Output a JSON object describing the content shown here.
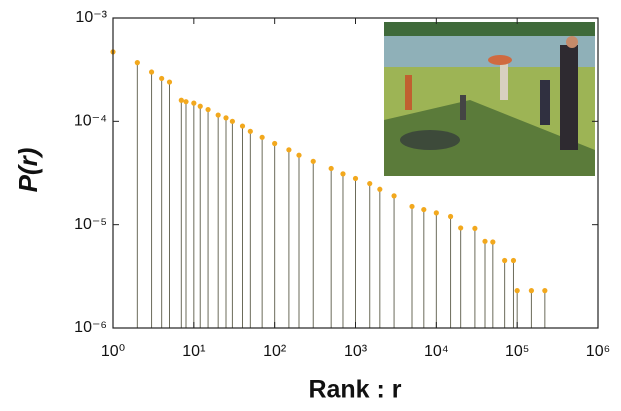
{
  "chart_data": {
    "type": "scatter",
    "xlabel": "Rank : r",
    "ylabel": "P(r)",
    "log_x": true,
    "log_y": true,
    "stems": true,
    "x": [
      1,
      2,
      3,
      4,
      5,
      7,
      8,
      10,
      12,
      15,
      20,
      25,
      30,
      40,
      50,
      70,
      100,
      150,
      200,
      300,
      500,
      700,
      1000,
      1500,
      2000,
      3000,
      5000,
      7000,
      10000,
      15000,
      20000,
      30000,
      40000,
      50000,
      70000,
      90000,
      100000,
      150000,
      220000
    ],
    "values": [
      0.00047,
      0.00037,
      0.0003,
      0.00026,
      0.00024,
      0.00016,
      0.000155,
      0.00015,
      0.00014,
      0.00013,
      0.000115,
      0.000108,
      0.0001,
      9e-05,
      8e-05,
      7e-05,
      6.1e-05,
      5.3e-05,
      4.7e-05,
      4.1e-05,
      3.5e-05,
      3.1e-05,
      2.8e-05,
      2.5e-05,
      2.2e-05,
      1.9e-05,
      1.5e-05,
      1.4e-05,
      1.3e-05,
      1.2e-05,
      9.3e-06,
      9.2e-06,
      6.9e-06,
      6.8e-06,
      4.5e-06,
      4.5e-06,
      2.3e-06,
      2.3e-06,
      2.3e-06
    ],
    "color": "#f2a81d",
    "stem_color": "#6b6b5a",
    "xlim": [
      1,
      1000000
    ],
    "ylim": [
      1e-06,
      0.001
    ],
    "xticks": [
      {
        "value": 1,
        "label": "10⁰"
      },
      {
        "value": 10,
        "label": "10¹"
      },
      {
        "value": 100,
        "label": "10²"
      },
      {
        "value": 1000,
        "label": "10³"
      },
      {
        "value": 10000,
        "label": "10⁴"
      },
      {
        "value": 100000,
        "label": "10⁵"
      },
      {
        "value": 1000000,
        "label": "10⁶"
      }
    ],
    "yticks": [
      {
        "value": 1e-06,
        "label": "10⁻⁶"
      },
      {
        "value": 1e-05,
        "label": "10⁻⁵"
      },
      {
        "value": 0.0001,
        "label": "10⁻⁴"
      },
      {
        "value": 0.001,
        "label": "10⁻³"
      }
    ]
  }
}
